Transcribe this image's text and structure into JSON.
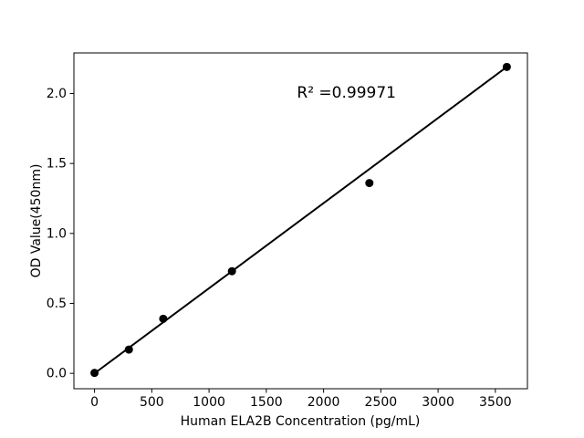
{
  "chart_data": {
    "type": "scatter",
    "title": "",
    "xlabel": "Human ELA2B Concentration (pg/mL)",
    "ylabel": "OD Value(450nm)",
    "points": [
      {
        "x": 0,
        "y": 0.003
      },
      {
        "x": 300,
        "y": 0.17
      },
      {
        "x": 600,
        "y": 0.39
      },
      {
        "x": 1200,
        "y": 0.73
      },
      {
        "x": 2400,
        "y": 1.36
      },
      {
        "x": 3600,
        "y": 2.19
      }
    ],
    "fit_line": {
      "x1": 0,
      "y1": 0.0,
      "x2": 3600,
      "y2": 2.19
    },
    "x_ticks": [
      {
        "value": 0,
        "label": "0"
      },
      {
        "value": 500,
        "label": "500"
      },
      {
        "value": 1000,
        "label": "1000"
      },
      {
        "value": 1500,
        "label": "1500"
      },
      {
        "value": 2000,
        "label": "2000"
      },
      {
        "value": 2500,
        "label": "2500"
      },
      {
        "value": 3000,
        "label": "3000"
      },
      {
        "value": 3500,
        "label": "3500"
      }
    ],
    "y_ticks": [
      {
        "value": 0.0,
        "label": "0.0"
      },
      {
        "value": 0.5,
        "label": "0.5"
      },
      {
        "value": 1.0,
        "label": "1.0"
      },
      {
        "value": 1.5,
        "label": "1.5"
      },
      {
        "value": 2.0,
        "label": "2.0"
      }
    ],
    "xlim": [
      -180,
      3780
    ],
    "ylim": [
      -0.11,
      2.29
    ],
    "annotation": {
      "text": "R² =0.99971",
      "x": 2200,
      "y": 1.97
    },
    "legend": null,
    "grid": false,
    "marker_color": "#000000",
    "line_color": "#000000",
    "axis_color": "#000000",
    "background_color": "#ffffff"
  }
}
